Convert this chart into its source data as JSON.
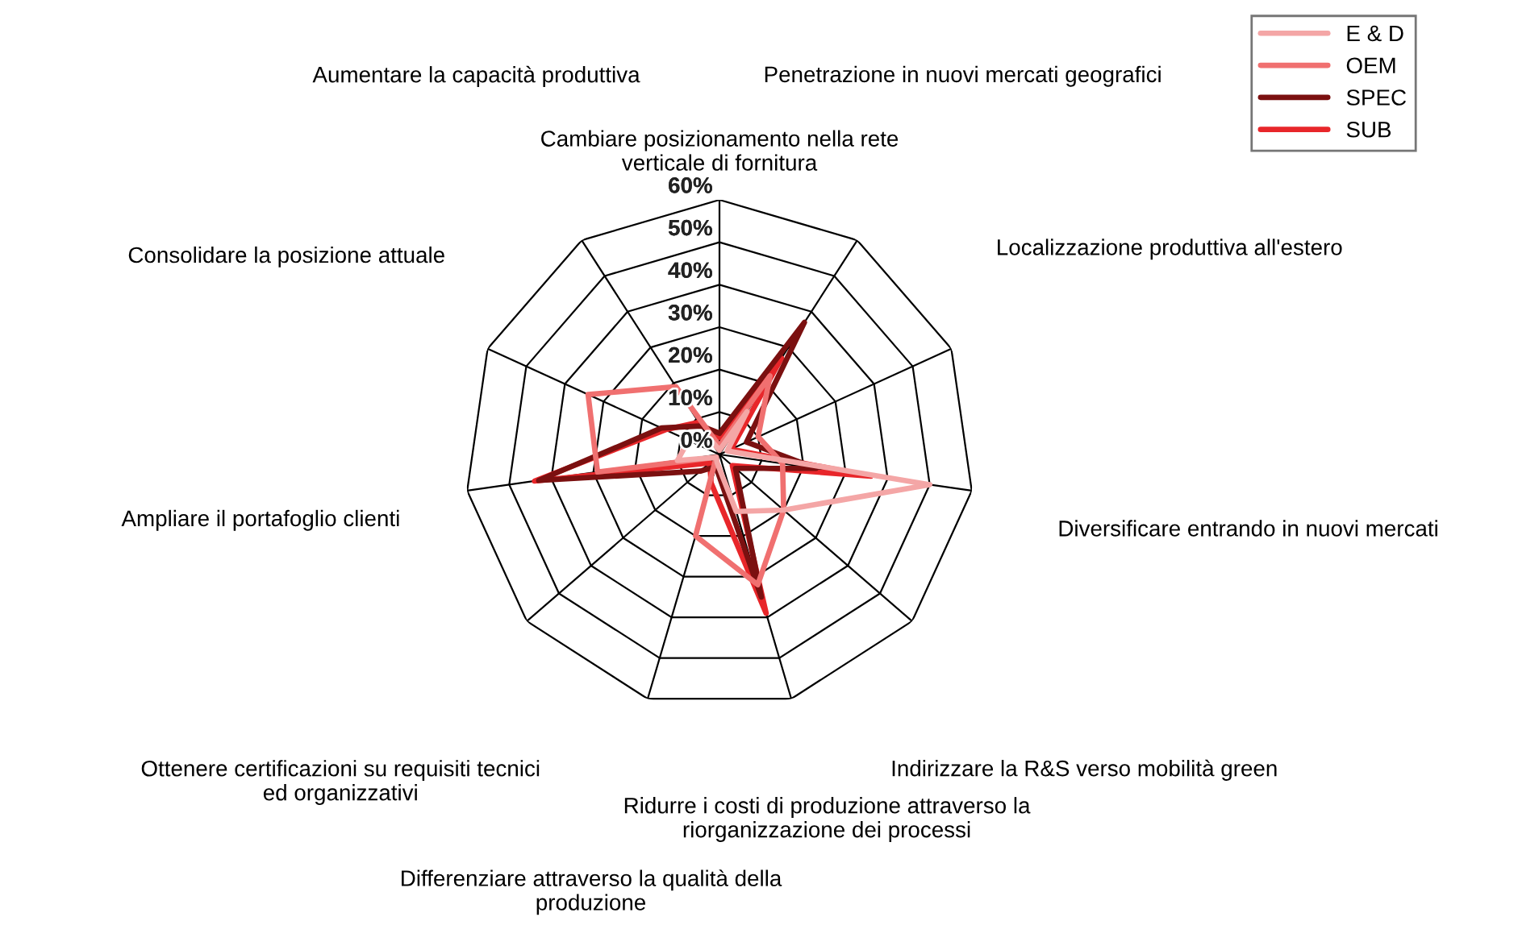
{
  "chart_data": {
    "type": "radar",
    "categories": [
      "Cambiare posizionamento nella rete\nverticale di fornitura",
      "Penetrazione in nuovi mercati geografici",
      "Localizzazione produttiva all'estero",
      "Diversificare entrando in nuovi mercati",
      "Indirizzare la R&S verso mobilità green",
      "Ridurre i costi di produzione attraverso la\nriorganizzazione dei processi",
      "Differenziare attraverso la qualità della\nproduzione",
      "Ottenere certificazioni su requisiti tecnici\ned organizzativi",
      "Ampliare il portafoglio clienti",
      "Consolidare la posizione attuale",
      "Aumentare la capacità produttiva"
    ],
    "series": [
      {
        "name": "E & D",
        "color": "#f4a6a6",
        "values": [
          1,
          12,
          2,
          50,
          20,
          14,
          2,
          1,
          10,
          8,
          5
        ]
      },
      {
        "name": "OEM",
        "color": "#f07070",
        "values": [
          2,
          22,
          10,
          15,
          20,
          32,
          20,
          1,
          29,
          34,
          19
        ]
      },
      {
        "name": "SPEC",
        "color": "#7b1010",
        "values": [
          5,
          37,
          7,
          23,
          5,
          35,
          3,
          6,
          43,
          15,
          8
        ]
      },
      {
        "name": "SUB",
        "color": "#e8262a",
        "values": [
          4,
          27,
          3,
          36,
          4,
          39,
          7,
          3,
          44,
          14,
          9
        ]
      }
    ],
    "ylim": [
      0,
      60
    ],
    "yticks": [
      {
        "value": 0,
        "label": "0%"
      },
      {
        "value": 10,
        "label": "10%"
      },
      {
        "value": 20,
        "label": "20%"
      },
      {
        "value": 30,
        "label": "30%"
      },
      {
        "value": 40,
        "label": "40%"
      },
      {
        "value": 50,
        "label": "50%"
      },
      {
        "value": 60,
        "label": "60%"
      }
    ],
    "grid": true,
    "legend": "top right",
    "marker": "none",
    "line_style": "solid"
  }
}
